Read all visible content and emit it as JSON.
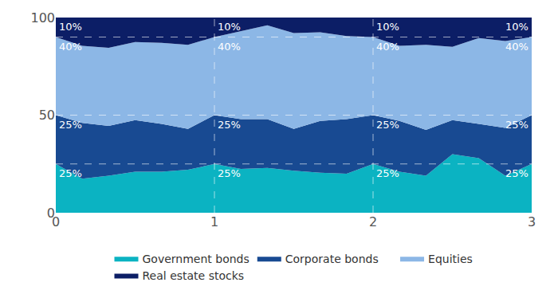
{
  "chart_data": {
    "type": "area",
    "stacked": true,
    "grid": false,
    "legend": "bottom",
    "x": [
      0,
      0.1667,
      0.3333,
      0.5,
      0.6667,
      0.8333,
      1,
      1.1667,
      1.3333,
      1.5,
      1.6667,
      1.8333,
      2,
      2.1667,
      2.3333,
      2.5,
      2.6667,
      2.8333,
      3
    ],
    "series": [
      {
        "name": "Government bonds",
        "color": "#0bb3c2",
        "values": [
          25,
          17.5,
          19,
          21,
          21,
          22,
          25,
          22.5,
          23,
          21.5,
          20.5,
          20,
          25,
          21,
          19,
          30,
          28,
          19,
          25
        ]
      },
      {
        "name": "Corporate bonds",
        "color": "#184a92",
        "values": [
          25,
          28.5,
          25.5,
          26.5,
          24.5,
          21,
          25,
          25.5,
          25,
          21.5,
          26.5,
          28,
          25,
          26,
          23.5,
          17.5,
          17.5,
          24.5,
          25
        ]
      },
      {
        "name": "Equities",
        "color": "#8cb7e6",
        "values": [
          40,
          39.5,
          40,
          40,
          41.5,
          43,
          40,
          45,
          48,
          49,
          45.5,
          42.5,
          40,
          38.5,
          43.5,
          37.5,
          44,
          44.5,
          40
        ]
      },
      {
        "name": "Real estate stocks",
        "color": "#0c1e66",
        "values": [
          10,
          14.5,
          15.5,
          12.5,
          13,
          14,
          10,
          7,
          4,
          8,
          7.5,
          9.5,
          10,
          14.5,
          14,
          15,
          10.5,
          12,
          10
        ]
      }
    ],
    "xlim": [
      0,
      3
    ],
    "xticks": [
      0,
      1,
      2,
      3
    ],
    "ylim": [
      0,
      100
    ],
    "yticks": [
      0,
      50,
      100
    ],
    "hlines": [
      25,
      50,
      90
    ],
    "vlines": [
      1,
      2
    ],
    "annotations": [
      {
        "x": 0,
        "y": 100,
        "text": "10%"
      },
      {
        "x": 0,
        "y": 90,
        "text": "40%"
      },
      {
        "x": 0,
        "y": 50,
        "text": "25%"
      },
      {
        "x": 0,
        "y": 25,
        "text": "25%"
      },
      {
        "x": 1,
        "y": 100,
        "text": "10%"
      },
      {
        "x": 1,
        "y": 90,
        "text": "40%"
      },
      {
        "x": 1,
        "y": 50,
        "text": "25%"
      },
      {
        "x": 1,
        "y": 25,
        "text": "25%"
      },
      {
        "x": 2,
        "y": 100,
        "text": "10%"
      },
      {
        "x": 2,
        "y": 90,
        "text": "40%"
      },
      {
        "x": 2,
        "y": 50,
        "text": "25%"
      },
      {
        "x": 2,
        "y": 25,
        "text": "25%"
      },
      {
        "x": 3,
        "y": 100,
        "text": "10%"
      },
      {
        "x": 3,
        "y": 90,
        "text": "40%"
      },
      {
        "x": 3,
        "y": 50,
        "text": "25%"
      },
      {
        "x": 3,
        "y": 25,
        "text": "25%"
      }
    ]
  }
}
